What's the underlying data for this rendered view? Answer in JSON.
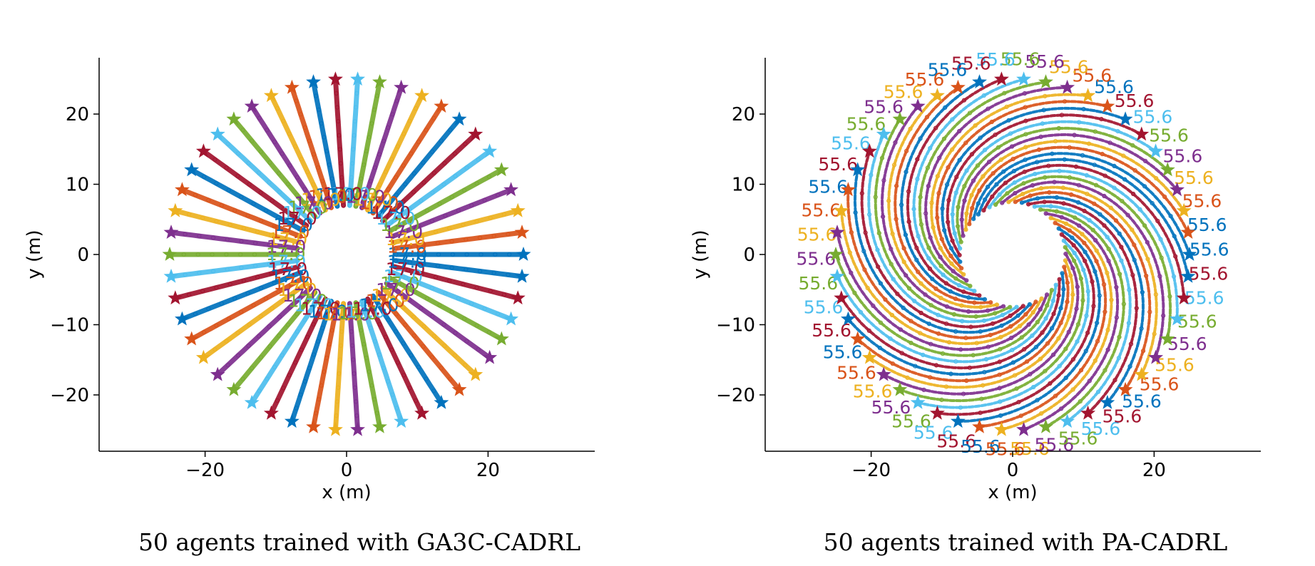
{
  "colors": [
    "#0072bd",
    "#d95319",
    "#edb120",
    "#7e2f8e",
    "#77ac30",
    "#4dbeee",
    "#a2142f"
  ],
  "chart_data": [
    {
      "type": "scatter",
      "title": "",
      "caption": "50 agents trained with GA3C-CADRL",
      "xlabel": "x (m)",
      "ylabel": "y (m)",
      "xlim": [
        -35,
        35
      ],
      "ylim": [
        -28,
        28
      ],
      "xticks": [
        -20,
        0,
        20
      ],
      "yticks": [
        -20,
        -10,
        0,
        10,
        20
      ],
      "xtick_labels": [
        "−20",
        "0",
        "20"
      ],
      "ytick_labels": [
        "−20",
        "−10",
        "0",
        "10",
        "20"
      ],
      "num_agents": 50,
      "start_radius": 25,
      "goal_marker": "star",
      "trajectory_style": "straight-radial",
      "end_radius": 7,
      "time_label": "17.0",
      "grid": false
    },
    {
      "type": "scatter",
      "title": "",
      "caption": "50 agents trained with PA-CADRL",
      "xlabel": "x (m)",
      "ylabel": "y (m)",
      "xlim": [
        -35,
        35
      ],
      "ylim": [
        -28,
        28
      ],
      "xticks": [
        -20,
        0,
        20
      ],
      "yticks": [
        -20,
        -10,
        0,
        10,
        20
      ],
      "xtick_labels": [
        "−20",
        "0",
        "20"
      ],
      "ytick_labels": [
        "−20",
        "−10",
        "0",
        "10",
        "20"
      ],
      "num_agents": 50,
      "start_radius": 25,
      "goal_marker": "star",
      "trajectory_style": "spiral",
      "inner_radius": 7.5,
      "time_label": "55.6",
      "grid": false
    }
  ]
}
